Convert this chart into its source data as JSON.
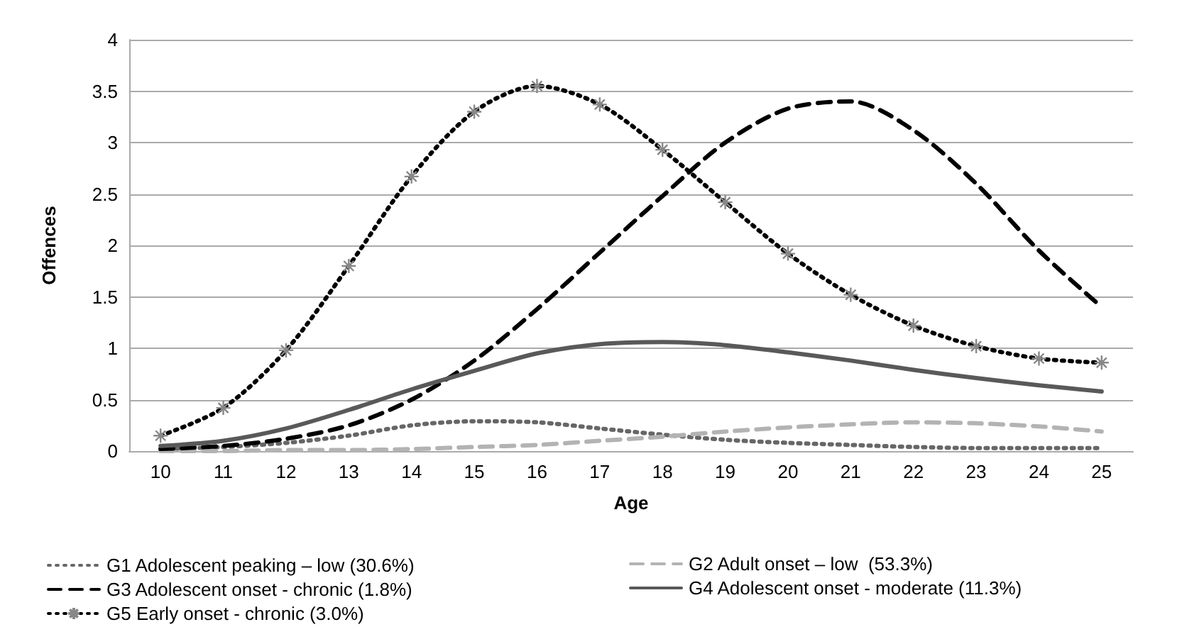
{
  "chart_data": {
    "type": "line",
    "xlabel": "Age",
    "ylabel": "Offences",
    "categories": [
      "10",
      "11",
      "12",
      "13",
      "14",
      "15",
      "16",
      "17",
      "18",
      "19",
      "20",
      "21",
      "22",
      "23",
      "24",
      "25"
    ],
    "series": [
      {
        "name": "G1 Adolescent peaking – low (30.6%)",
        "color": "#666666",
        "line_style": "dotted",
        "marker": "none",
        "values": [
          0.02,
          0.04,
          0.08,
          0.15,
          0.25,
          0.29,
          0.28,
          0.22,
          0.16,
          0.11,
          0.08,
          0.06,
          0.04,
          0.03,
          0.03,
          0.03
        ]
      },
      {
        "name": "G2 Adult onset – low  (53.3%)",
        "color": "#b3b3b3",
        "line_style": "dashed",
        "marker": "none",
        "values": [
          0.0,
          0.0,
          0.01,
          0.01,
          0.02,
          0.04,
          0.06,
          0.1,
          0.14,
          0.19,
          0.23,
          0.26,
          0.28,
          0.27,
          0.24,
          0.19
        ]
      },
      {
        "name": "G3 Adolescent onset - chronic (1.8%)",
        "color": "#000000",
        "line_style": "dashed",
        "marker": "none",
        "values": [
          0.02,
          0.05,
          0.12,
          0.25,
          0.5,
          0.88,
          1.38,
          1.93,
          2.48,
          3.0,
          3.33,
          3.4,
          3.12,
          2.6,
          1.95,
          1.4
        ]
      },
      {
        "name": "G4 Adolescent onset - moderate (11.3%)",
        "color": "#595959",
        "line_style": "solid",
        "marker": "none",
        "values": [
          0.05,
          0.1,
          0.22,
          0.4,
          0.6,
          0.78,
          0.95,
          1.04,
          1.06,
          1.03,
          0.96,
          0.88,
          0.79,
          0.71,
          0.64,
          0.58
        ]
      },
      {
        "name": "G5 Early onset - chronic (3.0%)",
        "color": "#000000",
        "line_style": "dotted",
        "marker": "cross",
        "values": [
          0.15,
          0.42,
          0.98,
          1.8,
          2.67,
          3.3,
          3.55,
          3.37,
          2.93,
          2.42,
          1.92,
          1.52,
          1.22,
          1.02,
          0.9,
          0.86
        ]
      }
    ],
    "ylim": [
      0,
      4
    ],
    "yticks": [
      0,
      0.5,
      1,
      1.5,
      2,
      2.5,
      3,
      3.5,
      4
    ],
    "grid": "y",
    "legend": "bottom"
  }
}
